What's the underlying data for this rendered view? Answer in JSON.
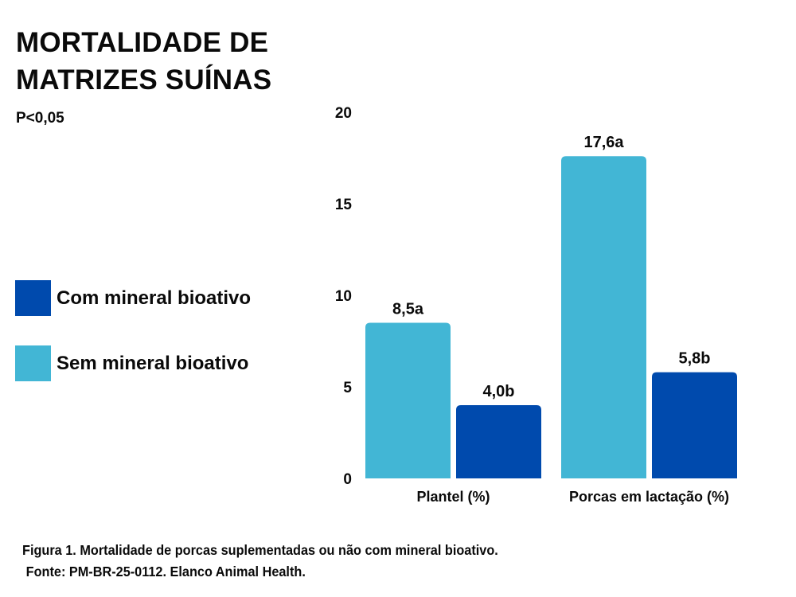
{
  "chart_data": {
    "type": "bar",
    "title": "MORTALIDADE DE MATRIZES SUÍNAS",
    "title_lines": [
      "MORTALIDADE DE",
      "MATRIZES SUÍNAS"
    ],
    "subtitle": "P<0,05",
    "xlabel": "",
    "ylabel": "",
    "ylim": [
      0,
      20
    ],
    "yticks": [
      0,
      5,
      10,
      15,
      20
    ],
    "ytick_labels": [
      "0",
      "5",
      "10",
      "15",
      "20"
    ],
    "grid": false,
    "legend_position": "left",
    "categories": [
      "Plantel (%)",
      "Porcas em lactação (%)"
    ],
    "category_labels": [
      "Plantel (%)",
      "Porcas em lactação (%)"
    ],
    "series": [
      {
        "name": "Sem mineral bioativo",
        "color": "#42b6d5",
        "values": [
          8.5,
          17.6
        ],
        "labels": [
          "8,5a",
          "17,6a"
        ]
      },
      {
        "name": "Com mineral bioativo",
        "color": "#004aad",
        "values": [
          4.0,
          5.8
        ],
        "labels": [
          "4,0b",
          "5,8b"
        ]
      }
    ],
    "legend": [
      {
        "label": "Com mineral bioativo",
        "color": "#004aad"
      },
      {
        "label": "Sem mineral bioativo",
        "color": "#42b6d5"
      }
    ]
  },
  "caption": {
    "line1": "Figura 1. Mortalidade de porcas suplementadas ou não com mineral bioativo.",
    "line2": "Fonte: PM-BR-25-0112. Elanco Animal Health."
  }
}
